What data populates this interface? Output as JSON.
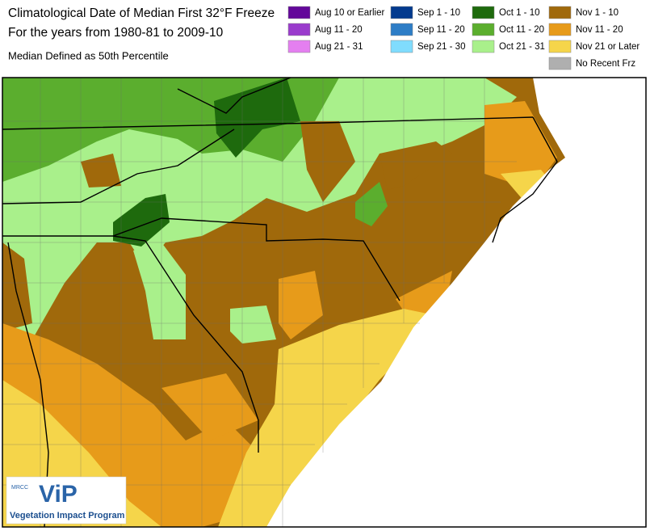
{
  "header": {
    "title_lines": [
      "Climatological Date of Median First 32°F Freeze",
      "For the years from 1980-81 to 2009-10"
    ],
    "subtitle": "Median Defined as 50th Percentile"
  },
  "legend": {
    "columns": [
      [
        {
          "label": "Aug 10 or Earlier",
          "color": "#63089a"
        },
        {
          "label": "Aug 11 - 20",
          "color": "#9a3ccc"
        },
        {
          "label": "Aug 21 - 31",
          "color": "#e47ff0"
        }
      ],
      [
        {
          "label": "Sep 1 - 10",
          "color": "#033a8e"
        },
        {
          "label": "Sep 11 - 20",
          "color": "#2e7dc6"
        },
        {
          "label": "Sep 21 - 30",
          "color": "#80dcfd"
        }
      ],
      [
        {
          "label": "Oct 1 - 10",
          "color": "#1e6a0d"
        },
        {
          "label": "Oct 11 - 20",
          "color": "#5bae2e"
        },
        {
          "label": "Oct 21 - 31",
          "color": "#a9f08b"
        }
      ],
      [
        {
          "label": "Nov 1 - 10",
          "color": "#a0690b"
        },
        {
          "label": "Nov 11 - 20",
          "color": "#e79b1a"
        },
        {
          "label": "Nov 21 or Later",
          "color": "#f5d54a"
        },
        {
          "label": "No Recent Frz",
          "color": "#afafaf"
        }
      ]
    ]
  },
  "logo": {
    "org": "MRCC",
    "mark": "ViP",
    "name": "Vegetation Impact Program"
  }
}
